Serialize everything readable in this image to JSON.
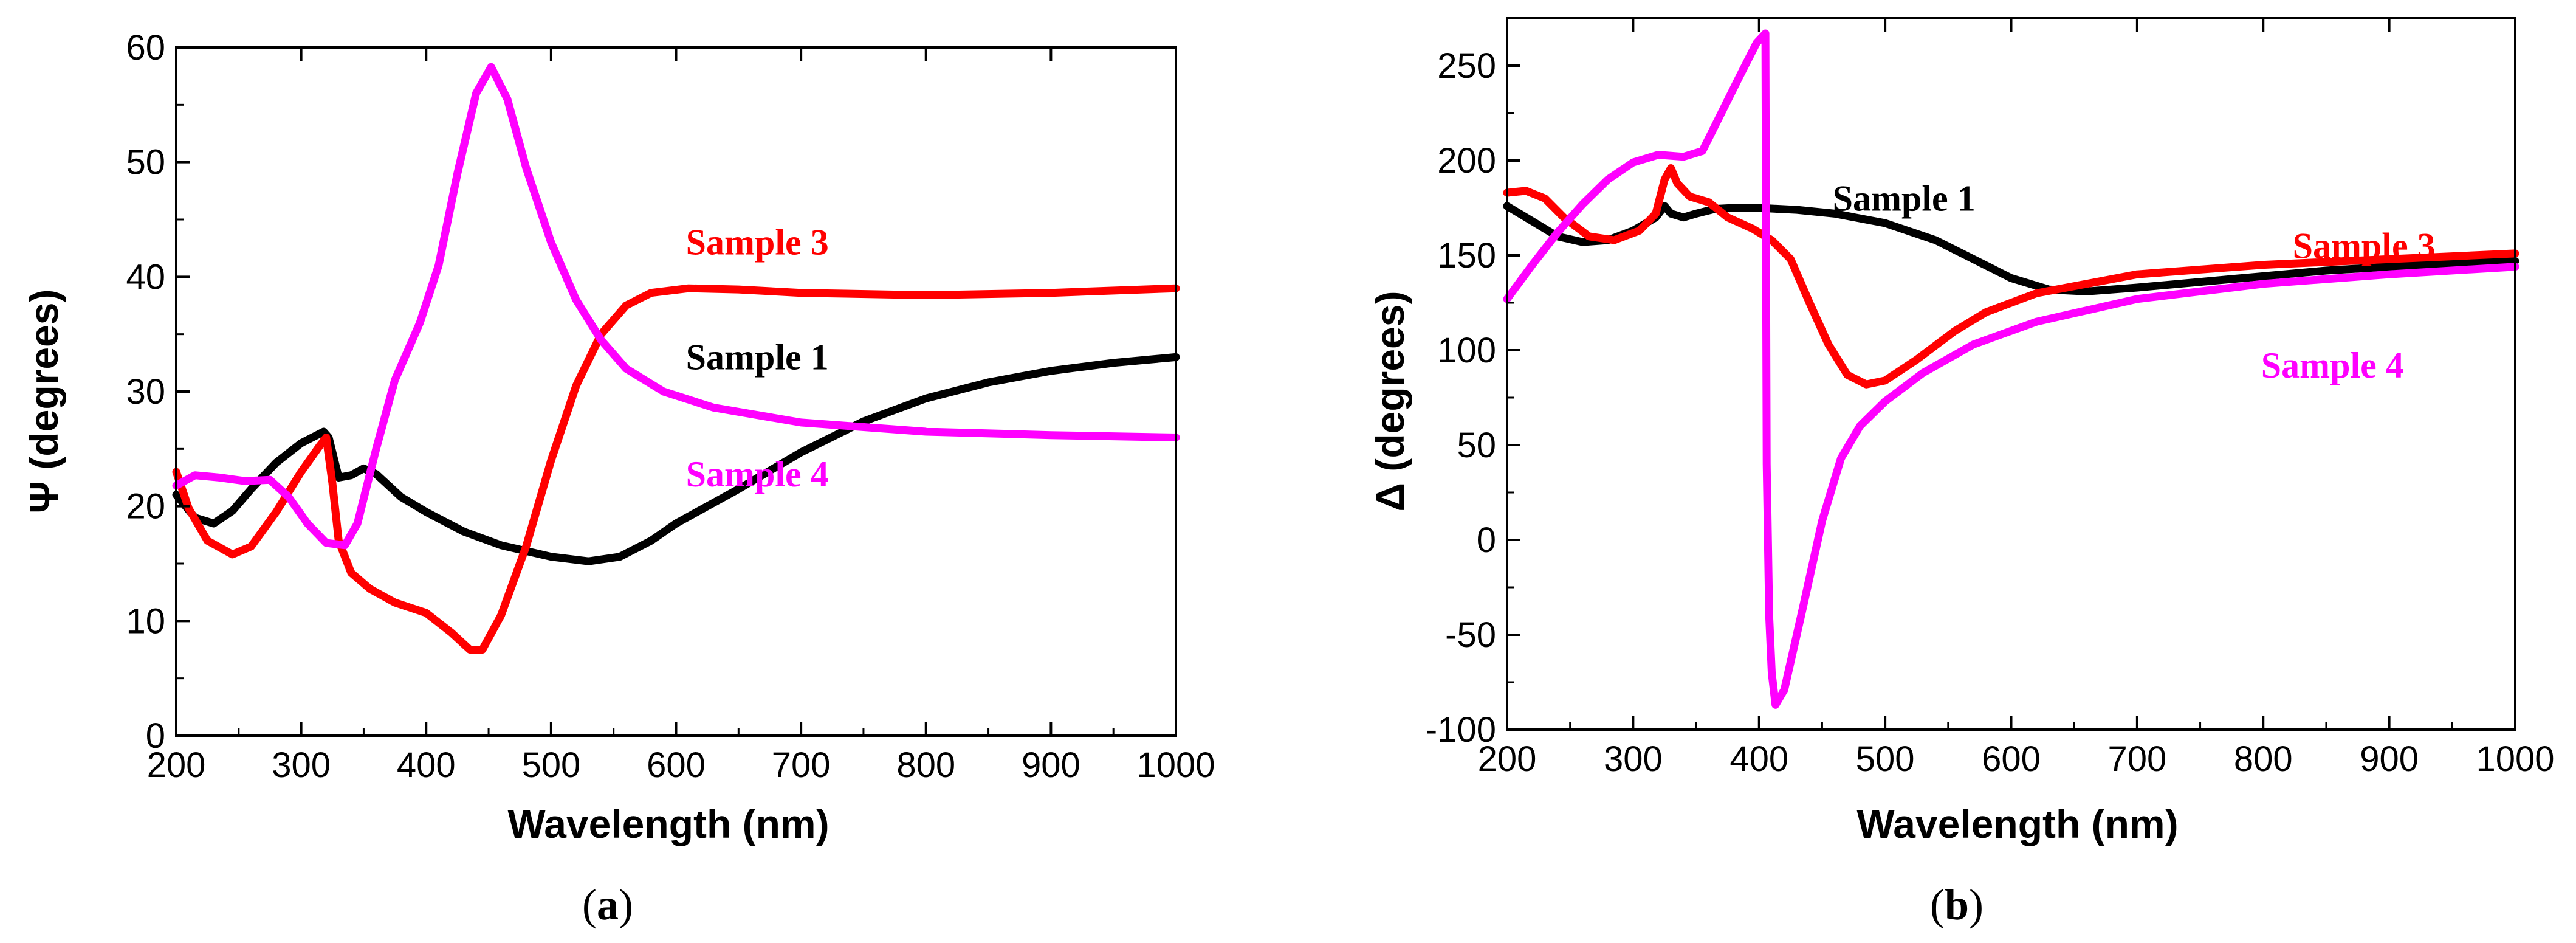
{
  "colors": {
    "sample1": "#000000",
    "sample3": "#ff0000",
    "sample4": "#ff00ff"
  },
  "chart_data": [
    {
      "type": "line",
      "panel_id": "a",
      "caption": {
        "open": "(",
        "letter": "a",
        "close": ")"
      },
      "xlabel": "Wavelength (nm)",
      "ylabel": "Ψ (degrees)",
      "xlim": [
        200,
        1000
      ],
      "ylim": [
        0,
        60
      ],
      "x_ticks": [
        200,
        300,
        400,
        500,
        600,
        700,
        800,
        900,
        1000
      ],
      "y_ticks": [
        0,
        10,
        20,
        30,
        40,
        50,
        60
      ],
      "series": [
        {
          "name": "Sample 1",
          "label": "Sample 1",
          "color": "#000000",
          "label_pos": [
            665,
            33
          ],
          "points": [
            [
              200,
              21
            ],
            [
              215,
              19
            ],
            [
              230,
              18.5
            ],
            [
              245,
              19.6
            ],
            [
              260,
              21.5
            ],
            [
              280,
              23.8
            ],
            [
              300,
              25.5
            ],
            [
              318,
              26.5
            ],
            [
              322,
              26
            ],
            [
              330,
              22.5
            ],
            [
              340,
              22.7
            ],
            [
              350,
              23.3
            ],
            [
              360,
              22.8
            ],
            [
              380,
              20.8
            ],
            [
              400,
              19.5
            ],
            [
              430,
              17.8
            ],
            [
              460,
              16.6
            ],
            [
              500,
              15.6
            ],
            [
              530,
              15.2
            ],
            [
              555,
              15.6
            ],
            [
              580,
              17
            ],
            [
              600,
              18.5
            ],
            [
              650,
              21.5
            ],
            [
              700,
              24.7
            ],
            [
              750,
              27.4
            ],
            [
              800,
              29.4
            ],
            [
              850,
              30.8
            ],
            [
              900,
              31.8
            ],
            [
              950,
              32.5
            ],
            [
              1000,
              33
            ]
          ]
        },
        {
          "name": "Sample 3",
          "label": "Sample 3",
          "color": "#ff0000",
          "label_pos": [
            665,
            43
          ],
          "points": [
            [
              200,
              23
            ],
            [
              210,
              19.8
            ],
            [
              225,
              17
            ],
            [
              245,
              15.8
            ],
            [
              260,
              16.5
            ],
            [
              280,
              19.5
            ],
            [
              300,
              23
            ],
            [
              315,
              25.3
            ],
            [
              320,
              26
            ],
            [
              325,
              22
            ],
            [
              330,
              17
            ],
            [
              340,
              14.2
            ],
            [
              355,
              12.8
            ],
            [
              375,
              11.6
            ],
            [
              400,
              10.7
            ],
            [
              420,
              9
            ],
            [
              435,
              7.5
            ],
            [
              445,
              7.5
            ],
            [
              460,
              10.5
            ],
            [
              480,
              16.5
            ],
            [
              500,
              24
            ],
            [
              520,
              30.5
            ],
            [
              540,
              35
            ],
            [
              560,
              37.5
            ],
            [
              580,
              38.6
            ],
            [
              610,
              39
            ],
            [
              650,
              38.9
            ],
            [
              700,
              38.6
            ],
            [
              800,
              38.4
            ],
            [
              900,
              38.6
            ],
            [
              1000,
              39
            ]
          ]
        },
        {
          "name": "Sample 4",
          "label": "Sample 4",
          "color": "#ff00ff",
          "label_pos": [
            665,
            22.8
          ],
          "points": [
            [
              200,
              21.8
            ],
            [
              215,
              22.7
            ],
            [
              235,
              22.5
            ],
            [
              255,
              22.2
            ],
            [
              275,
              22.3
            ],
            [
              290,
              20.8
            ],
            [
              305,
              18.5
            ],
            [
              320,
              16.8
            ],
            [
              335,
              16.6
            ],
            [
              345,
              18.5
            ],
            [
              360,
              25
            ],
            [
              375,
              31
            ],
            [
              395,
              36
            ],
            [
              410,
              41
            ],
            [
              425,
              49
            ],
            [
              440,
              56
            ],
            [
              452,
              58.3
            ],
            [
              465,
              55.5
            ],
            [
              480,
              49.5
            ],
            [
              500,
              43
            ],
            [
              520,
              38
            ],
            [
              540,
              34.5
            ],
            [
              560,
              32
            ],
            [
              590,
              30
            ],
            [
              630,
              28.6
            ],
            [
              700,
              27.3
            ],
            [
              800,
              26.5
            ],
            [
              900,
              26.2
            ],
            [
              1000,
              26
            ]
          ]
        }
      ]
    },
    {
      "type": "line",
      "panel_id": "b",
      "caption": {
        "open": "(",
        "letter": "b",
        "close": ")"
      },
      "xlabel": "Wavelength (nm)",
      "ylabel": "Δ (degrees)",
      "xlim": [
        200,
        1000
      ],
      "ylim": [
        -100,
        275
      ],
      "x_ticks": [
        200,
        300,
        400,
        500,
        600,
        700,
        800,
        900,
        1000
      ],
      "y_ticks": [
        -100,
        -50,
        0,
        50,
        100,
        150,
        200,
        250
      ],
      "series": [
        {
          "name": "Sample 1",
          "label": "Sample 1",
          "color": "#000000",
          "label_pos": [
            515,
            180
          ],
          "points": [
            [
              200,
              176
            ],
            [
              220,
              168
            ],
            [
              240,
              160
            ],
            [
              260,
              157
            ],
            [
              280,
              158
            ],
            [
              300,
              163
            ],
            [
              318,
              170
            ],
            [
              325,
              176
            ],
            [
              330,
              172
            ],
            [
              340,
              170
            ],
            [
              350,
              172
            ],
            [
              365,
              174.5
            ],
            [
              380,
              175
            ],
            [
              400,
              175
            ],
            [
              430,
              174
            ],
            [
              460,
              172
            ],
            [
              500,
              167
            ],
            [
              540,
              158
            ],
            [
              570,
              148
            ],
            [
              600,
              138
            ],
            [
              630,
              132
            ],
            [
              660,
              131
            ],
            [
              700,
              133
            ],
            [
              750,
              136
            ],
            [
              800,
              139
            ],
            [
              850,
              142
            ],
            [
              900,
              144
            ],
            [
              950,
              146
            ],
            [
              1000,
              147
            ]
          ]
        },
        {
          "name": "Sample 3",
          "label": "Sample 3",
          "color": "#ff0000",
          "label_pos": [
            880,
            155
          ],
          "points": [
            [
              200,
              183
            ],
            [
              215,
              184
            ],
            [
              230,
              180
            ],
            [
              245,
              170
            ],
            [
              265,
              160
            ],
            [
              285,
              158
            ],
            [
              305,
              163
            ],
            [
              318,
              172
            ],
            [
              325,
              190
            ],
            [
              330,
              196
            ],
            [
              335,
              188
            ],
            [
              345,
              181
            ],
            [
              360,
              178
            ],
            [
              375,
              170
            ],
            [
              395,
              164
            ],
            [
              410,
              158
            ],
            [
              425,
              148
            ],
            [
              440,
              125
            ],
            [
              455,
              103
            ],
            [
              470,
              87
            ],
            [
              485,
              82
            ],
            [
              500,
              84
            ],
            [
              525,
              95
            ],
            [
              555,
              110
            ],
            [
              580,
              120
            ],
            [
              620,
              130
            ],
            [
              700,
              140
            ],
            [
              800,
              145
            ],
            [
              900,
              148
            ],
            [
              1000,
              151
            ]
          ]
        },
        {
          "name": "Sample 4",
          "label": "Sample 4",
          "color": "#ff00ff",
          "label_pos": [
            855,
            92
          ],
          "points": [
            [
              200,
              127
            ],
            [
              220,
              145
            ],
            [
              240,
              162
            ],
            [
              260,
              177
            ],
            [
              280,
              190
            ],
            [
              300,
              199
            ],
            [
              320,
              203
            ],
            [
              340,
              202
            ],
            [
              355,
              205
            ],
            [
              370,
              225
            ],
            [
              385,
              245
            ],
            [
              398,
              262
            ],
            [
              405,
              267
            ],
            [
              406,
              40
            ],
            [
              408,
              -40
            ],
            [
              410,
              -70
            ],
            [
              413,
              -87
            ],
            [
              420,
              -79
            ],
            [
              435,
              -35
            ],
            [
              450,
              10
            ],
            [
              465,
              43
            ],
            [
              480,
              60
            ],
            [
              500,
              73
            ],
            [
              530,
              88
            ],
            [
              570,
              103
            ],
            [
              620,
              115
            ],
            [
              700,
              127
            ],
            [
              800,
              135
            ],
            [
              900,
              140
            ],
            [
              1000,
              144
            ]
          ]
        }
      ]
    }
  ]
}
